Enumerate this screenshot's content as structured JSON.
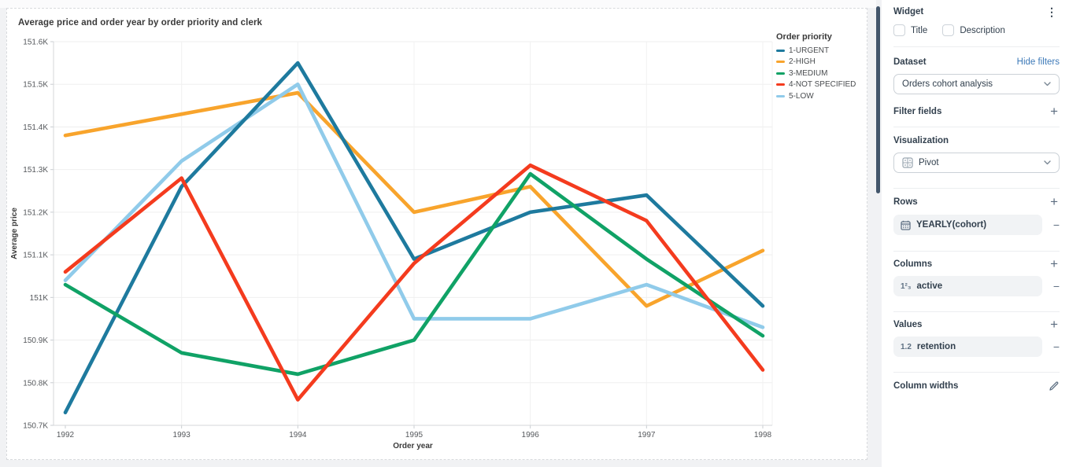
{
  "chart_data": {
    "type": "line",
    "title": "Average price and order year by order priority and clerk",
    "xlabel": "Order year",
    "ylabel": "Average price",
    "legend_title": "Order priority",
    "legend_position": "right-top",
    "grid": true,
    "x": [
      1992,
      1993,
      1994,
      1995,
      1996,
      1997,
      1998
    ],
    "ylim": [
      150700,
      151600
    ],
    "ytick_labels": [
      "150.7K",
      "150.8K",
      "150.9K",
      "151K",
      "151.1K",
      "151.2K",
      "151.3K",
      "151.4K",
      "151.5K",
      "151.6K"
    ],
    "series": [
      {
        "name": "1-URGENT",
        "color": "#1e7a9e",
        "values": [
          150730,
          151260,
          151550,
          151090,
          151200,
          151240,
          150980
        ]
      },
      {
        "name": "2-HIGH",
        "color": "#f8a42c",
        "values": [
          151380,
          151430,
          151480,
          151200,
          151260,
          150980,
          151110
        ]
      },
      {
        "name": "3-MEDIUM",
        "color": "#10a266",
        "values": [
          151030,
          150870,
          150820,
          150900,
          151290,
          151090,
          150910
        ]
      },
      {
        "name": "4-NOT SPECIFIED",
        "color": "#f43b1e",
        "values": [
          151060,
          151280,
          150760,
          151080,
          151310,
          151180,
          150830
        ]
      },
      {
        "name": "5-LOW",
        "color": "#90cbea",
        "values": [
          151040,
          151320,
          151500,
          150950,
          150950,
          151030,
          150930
        ]
      }
    ],
    "z_order": [
      1,
      4,
      0,
      2,
      3
    ]
  },
  "panel": {
    "title": "Widget",
    "kebab": "⋮",
    "plus": "+",
    "minus": "−",
    "checkbox_title": "Title",
    "checkbox_description": "Description",
    "dataset_label": "Dataset",
    "hide_filters": "Hide filters",
    "dataset_selected": "Orders cohort analysis",
    "filter_fields_label": "Filter fields",
    "visualization_label": "Visualization",
    "visualization_selected": "Pivot",
    "rows_label": "Rows",
    "rows_field": "YEARLY(cohort)",
    "columns_label": "Columns",
    "columns_field": "active",
    "columns_icon_text": "1²₃",
    "values_label": "Values",
    "values_field": "retention",
    "values_icon_text": "1.2",
    "column_widths_label": "Column widths"
  }
}
